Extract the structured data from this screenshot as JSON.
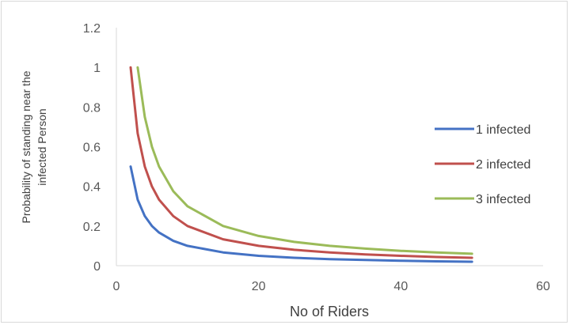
{
  "chart_data": {
    "type": "line",
    "title": "",
    "xlabel": "No of Riders",
    "ylabel_lines": [
      "Probability of standing near the",
      "infected Person"
    ],
    "xlim": [
      0,
      60
    ],
    "ylim": [
      0,
      1.2
    ],
    "x_ticks": [
      "0",
      "20",
      "40",
      "60"
    ],
    "y_ticks": [
      "0",
      "0.2",
      "0.4",
      "0.6",
      "0.8",
      "1",
      "1.2"
    ],
    "grid": false,
    "legend_position": "right",
    "series": [
      {
        "name": "1 infected",
        "color": "#4472c4",
        "x": [
          2,
          3,
          4,
          5,
          6,
          8,
          10,
          15,
          20,
          25,
          30,
          35,
          40,
          45,
          50
        ],
        "y": [
          0.5,
          0.333,
          0.25,
          0.2,
          0.167,
          0.125,
          0.1,
          0.067,
          0.05,
          0.04,
          0.033,
          0.029,
          0.025,
          0.022,
          0.02
        ]
      },
      {
        "name": "2 infected",
        "color": "#c0504d",
        "x": [
          2,
          3,
          4,
          5,
          6,
          8,
          10,
          15,
          20,
          25,
          30,
          35,
          40,
          45,
          50
        ],
        "y": [
          1.0,
          0.667,
          0.5,
          0.4,
          0.333,
          0.25,
          0.2,
          0.133,
          0.1,
          0.08,
          0.067,
          0.057,
          0.05,
          0.044,
          0.04
        ]
      },
      {
        "name": "3 infected",
        "color": "#9bbb59",
        "x": [
          3,
          4,
          5,
          6,
          8,
          10,
          15,
          20,
          25,
          30,
          35,
          40,
          45,
          50
        ],
        "y": [
          1.0,
          0.75,
          0.6,
          0.5,
          0.375,
          0.3,
          0.2,
          0.15,
          0.12,
          0.1,
          0.086,
          0.075,
          0.067,
          0.06
        ]
      }
    ]
  }
}
